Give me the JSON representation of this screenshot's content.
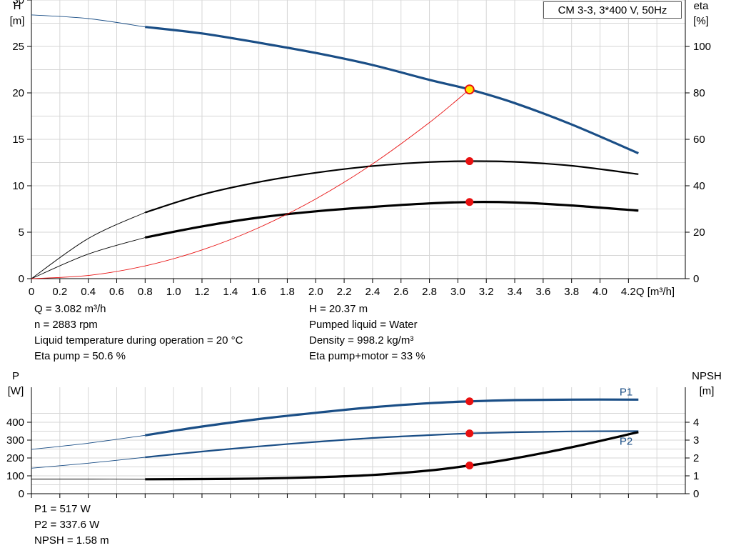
{
  "legend_box": "CM 3-3, 3*400 V, 50Hz",
  "colors": {
    "blue": "#1a4e86",
    "black": "#000000",
    "red": "#e81010",
    "dot_yellow": "#ffe600",
    "grid": "#d6d6d6"
  },
  "info_top_left": [
    "Q = 3.082 m³/h",
    "n = 2883 rpm",
    "Liquid temperature during operation = 20 °C",
    "Eta pump = 50.6 %"
  ],
  "info_top_right": [
    "H = 20.37 m",
    "Pumped liquid = Water",
    "Density = 998.2 kg/m³",
    "Eta pump+motor = 33 %"
  ],
  "info_bottom": [
    "P1 = 517 W",
    "P2 = 337.6 W",
    "NPSH = 1.58 m"
  ],
  "chart_data": [
    {
      "type": "line",
      "x_axis": {
        "label": "Q [m³/h]",
        "range": [
          0,
          4.6
        ],
        "ticks": [
          "0",
          "0.2",
          "0.4",
          "0.6",
          "0.8",
          "1.0",
          "1.2",
          "1.4",
          "1.6",
          "1.8",
          "2.0",
          "2.2",
          "2.4",
          "2.6",
          "2.8",
          "3.0",
          "3.2",
          "3.4",
          "3.6",
          "3.8",
          "4.0",
          "4.2"
        ]
      },
      "y_left": {
        "label_top": "H",
        "label_unit": "[m]",
        "range": [
          0,
          30
        ],
        "ticks": [
          "0",
          "5",
          "10",
          "15",
          "20",
          "25",
          "30"
        ]
      },
      "y_right": {
        "label_top": "eta",
        "label_unit": "[%]",
        "range": [
          0,
          120
        ],
        "ticks": [
          "0",
          "20",
          "40",
          "60",
          "80",
          "100"
        ]
      },
      "grid": true,
      "series": [
        {
          "key": "head",
          "axis": "left",
          "color": "blue",
          "weight": "thick",
          "x": [
            0,
            0.4,
            0.8,
            1.2,
            1.6,
            2.0,
            2.4,
            2.8,
            3.082,
            3.4,
            3.8,
            4.27
          ],
          "y": [
            28.4,
            28.0,
            27.1,
            26.4,
            25.4,
            24.3,
            23.0,
            21.4,
            20.37,
            18.9,
            16.6,
            13.5
          ]
        },
        {
          "key": "eta_pump_motor",
          "axis": "right",
          "color": "black",
          "weight": "thick",
          "x": [
            0,
            0.4,
            0.8,
            1.2,
            1.6,
            2.0,
            2.4,
            2.8,
            3.082,
            3.4,
            3.8,
            4.27
          ],
          "y": [
            0,
            10.6,
            17.7,
            22.5,
            26.3,
            29.0,
            30.9,
            32.4,
            33.0,
            32.8,
            31.5,
            29.3
          ]
        },
        {
          "key": "eta_pump",
          "axis": "right",
          "color": "black",
          "weight": "medium",
          "x": [
            0,
            0.4,
            0.8,
            1.2,
            1.6,
            2.0,
            2.4,
            2.8,
            3.082,
            3.4,
            3.8,
            4.27
          ],
          "y": [
            0,
            17.3,
            28.5,
            36.2,
            41.6,
            45.6,
            48.5,
            50.2,
            50.6,
            50.3,
            48.6,
            45.0
          ]
        },
        {
          "key": "system_curve",
          "axis": "left",
          "color": "red",
          "weight": "thin",
          "x": [
            0,
            0.4,
            0.8,
            1.2,
            1.6,
            2.0,
            2.4,
            2.8,
            3.082
          ],
          "y": [
            0,
            0.34,
            1.37,
            3.09,
            5.49,
            8.58,
            12.35,
            16.81,
            20.37
          ]
        }
      ],
      "markers": [
        {
          "axis": "left",
          "x": 3.082,
          "y": 20.37,
          "style": "yellow"
        },
        {
          "axis": "right",
          "x": 3.082,
          "y": 50.6,
          "style": "red"
        },
        {
          "axis": "right",
          "x": 3.082,
          "y": 33.0,
          "style": "red"
        }
      ]
    },
    {
      "type": "line",
      "x_axis": {
        "range": [
          0,
          4.6
        ]
      },
      "y_left": {
        "label_top": "P",
        "label_unit": "[W]",
        "range": [
          0,
          500
        ],
        "ticks": [
          "0",
          "100",
          "200",
          "300",
          "400"
        ]
      },
      "y_right": {
        "label_top": "NPSH",
        "label_unit": "[m]",
        "range": [
          0,
          5
        ],
        "ticks": [
          "0",
          "1",
          "2",
          "3",
          "4"
        ]
      },
      "grid": true,
      "series": [
        {
          "key": "P1",
          "name": "P1",
          "axis": "left",
          "color": "blue",
          "weight": "thick",
          "x": [
            0,
            0.4,
            0.8,
            1.2,
            1.6,
            2.0,
            2.4,
            2.8,
            3.082,
            3.4,
            3.8,
            4.27
          ],
          "y": [
            248,
            283,
            327,
            376,
            418,
            453,
            484,
            507,
            517,
            524,
            527,
            527
          ]
        },
        {
          "key": "P2",
          "name": "P2",
          "axis": "left",
          "color": "blue",
          "weight": "medium",
          "x": [
            0,
            0.4,
            0.8,
            1.2,
            1.6,
            2.0,
            2.4,
            2.8,
            3.082,
            3.4,
            3.8,
            4.27
          ],
          "y": [
            143,
            171,
            204,
            236,
            265,
            290,
            312,
            328,
            337.6,
            344,
            349,
            350
          ]
        },
        {
          "key": "NPSH",
          "axis": "right",
          "color": "black",
          "weight": "thick",
          "x": [
            0,
            0.4,
            0.8,
            1.2,
            1.6,
            2.0,
            2.4,
            2.8,
            3.082,
            3.4,
            3.8,
            4.27
          ],
          "y": [
            0.82,
            0.82,
            0.81,
            0.82,
            0.85,
            0.92,
            1.05,
            1.3,
            1.58,
            1.98,
            2.6,
            3.45
          ]
        }
      ],
      "markers": [
        {
          "axis": "left",
          "x": 3.082,
          "y": 517,
          "style": "red"
        },
        {
          "axis": "left",
          "x": 3.082,
          "y": 337.6,
          "style": "red"
        },
        {
          "axis": "right",
          "x": 3.082,
          "y": 1.58,
          "style": "red"
        }
      ]
    }
  ]
}
